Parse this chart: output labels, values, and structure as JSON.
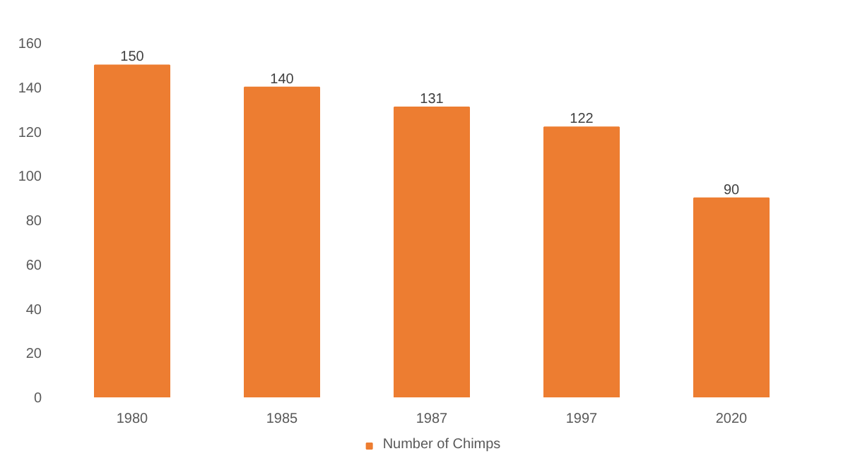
{
  "chart_data": {
    "type": "bar",
    "categories": [
      "1980",
      "1985",
      "1987",
      "1997",
      "2020"
    ],
    "series": [
      {
        "name": "Number of Chimps",
        "color": "#ed7d31",
        "values": [
          150,
          140,
          131,
          122,
          90
        ]
      }
    ],
    "ylim": [
      0,
      160
    ],
    "yticks": [
      0,
      20,
      40,
      60,
      80,
      100,
      120,
      140,
      160
    ],
    "grid": false,
    "legend": "bottom",
    "data_labels": true
  }
}
